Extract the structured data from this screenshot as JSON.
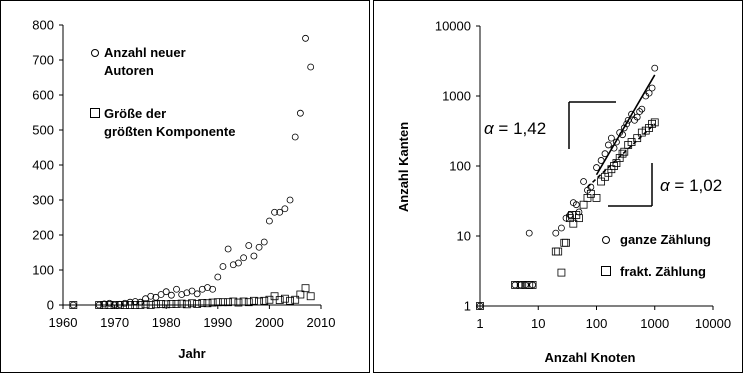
{
  "chart_data": [
    {
      "type": "scatter",
      "xlabel": "Jahr",
      "ylabel": "",
      "xlim": [
        1960,
        2010
      ],
      "ylim": [
        0,
        800
      ],
      "x_ticks": [
        "1960",
        "1970",
        "1980",
        "1990",
        "2000",
        "2010"
      ],
      "y_ticks": [
        "0",
        "100",
        "200",
        "300",
        "400",
        "500",
        "600",
        "700",
        "800"
      ],
      "grid": false,
      "legend_position": "top-left",
      "series": [
        {
          "name": "Anzahl neuer Autoren",
          "marker": "circle",
          "points": [
            [
              1962,
              0
            ],
            [
              1967,
              0
            ],
            [
              1968,
              3
            ],
            [
              1969,
              5
            ],
            [
              1970,
              0
            ],
            [
              1971,
              2
            ],
            [
              1972,
              5
            ],
            [
              1973,
              8
            ],
            [
              1974,
              10
            ],
            [
              1975,
              8
            ],
            [
              1976,
              18
            ],
            [
              1977,
              25
            ],
            [
              1978,
              22
            ],
            [
              1979,
              30
            ],
            [
              1980,
              38
            ],
            [
              1981,
              28
            ],
            [
              1982,
              45
            ],
            [
              1983,
              30
            ],
            [
              1984,
              35
            ],
            [
              1985,
              40
            ],
            [
              1986,
              32
            ],
            [
              1987,
              45
            ],
            [
              1988,
              50
            ],
            [
              1989,
              45
            ],
            [
              1990,
              80
            ],
            [
              1991,
              110
            ],
            [
              1992,
              160
            ],
            [
              1993,
              115
            ],
            [
              1994,
              120
            ],
            [
              1995,
              135
            ],
            [
              1996,
              170
            ],
            [
              1997,
              140
            ],
            [
              1998,
              165
            ],
            [
              1999,
              180
            ],
            [
              2000,
              240
            ],
            [
              2001,
              265
            ],
            [
              2002,
              265
            ],
            [
              2003,
              275
            ],
            [
              2004,
              300
            ],
            [
              2005,
              480
            ],
            [
              2006,
              548
            ],
            [
              2007,
              762
            ],
            [
              2008,
              680
            ]
          ]
        },
        {
          "name": "Größe der größten Komponente",
          "marker": "square",
          "points": [
            [
              1962,
              0
            ],
            [
              1967,
              0
            ],
            [
              1968,
              0
            ],
            [
              1969,
              0
            ],
            [
              1970,
              0
            ],
            [
              1971,
              0
            ],
            [
              1972,
              0
            ],
            [
              1973,
              0
            ],
            [
              1974,
              0
            ],
            [
              1975,
              0
            ],
            [
              1976,
              2
            ],
            [
              1977,
              0
            ],
            [
              1978,
              2
            ],
            [
              1979,
              3
            ],
            [
              1980,
              2
            ],
            [
              1981,
              3
            ],
            [
              1982,
              3
            ],
            [
              1983,
              4
            ],
            [
              1984,
              2
            ],
            [
              1985,
              5
            ],
            [
              1986,
              3
            ],
            [
              1987,
              6
            ],
            [
              1988,
              5
            ],
            [
              1989,
              7
            ],
            [
              1990,
              8
            ],
            [
              1991,
              8
            ],
            [
              1992,
              8
            ],
            [
              1993,
              10
            ],
            [
              1994,
              7
            ],
            [
              1995,
              10
            ],
            [
              1996,
              8
            ],
            [
              1997,
              12
            ],
            [
              1998,
              10
            ],
            [
              1999,
              12
            ],
            [
              2000,
              15
            ],
            [
              2001,
              25
            ],
            [
              2002,
              14
            ],
            [
              2003,
              18
            ],
            [
              2004,
              12
            ],
            [
              2005,
              15
            ],
            [
              2006,
              30
            ],
            [
              2007,
              48
            ],
            [
              2008,
              25
            ]
          ]
        }
      ]
    },
    {
      "type": "scatter",
      "xlabel": "Anzahl Knoten",
      "ylabel": "Anzahl Kanten",
      "xscale": "log",
      "yscale": "log",
      "xlim": [
        1,
        10000
      ],
      "ylim": [
        1,
        10000
      ],
      "x_ticks": [
        "1",
        "10",
        "100",
        "1000",
        "10000"
      ],
      "y_ticks": [
        "1",
        "10",
        "100",
        "1000",
        "10000"
      ],
      "grid": false,
      "legend_position": "bottom-right",
      "annotations": [
        {
          "greek": "α",
          "text": " = 1,42"
        },
        {
          "greek": "α",
          "text": " = 1,02"
        }
      ],
      "fit_lines": [
        {
          "series": "ganze Zählung",
          "from": [
            100,
            75
          ],
          "to": [
            1000,
            2000
          ],
          "style": "solid"
        },
        {
          "series": "frakt. Zählung",
          "from": [
            70,
            50
          ],
          "to": [
            1000,
            400
          ],
          "style": "dashed"
        }
      ],
      "series": [
        {
          "name": "ganze Zählung",
          "marker": "circle",
          "points": [
            [
              1,
              1
            ],
            [
              4,
              2
            ],
            [
              5,
              2
            ],
            [
              6,
              2
            ],
            [
              7,
              11
            ],
            [
              8,
              2
            ],
            [
              20,
              11
            ],
            [
              25,
              13
            ],
            [
              30,
              18
            ],
            [
              35,
              20
            ],
            [
              40,
              30
            ],
            [
              45,
              28
            ],
            [
              50,
              22
            ],
            [
              60,
              60
            ],
            [
              70,
              45
            ],
            [
              80,
              50
            ],
            [
              100,
              95
            ],
            [
              120,
              120
            ],
            [
              140,
              150
            ],
            [
              160,
              200
            ],
            [
              180,
              250
            ],
            [
              200,
              180
            ],
            [
              220,
              220
            ],
            [
              250,
              300
            ],
            [
              280,
              280
            ],
            [
              300,
              350
            ],
            [
              330,
              400
            ],
            [
              350,
              450
            ],
            [
              400,
              550
            ],
            [
              450,
              450
            ],
            [
              500,
              500
            ],
            [
              550,
              600
            ],
            [
              600,
              650
            ],
            [
              700,
              1000
            ],
            [
              800,
              1100
            ],
            [
              900,
              1300
            ],
            [
              1000,
              2500
            ]
          ]
        },
        {
          "name": "frakt. Zählung",
          "marker": "square",
          "points": [
            [
              1,
              1
            ],
            [
              4,
              2
            ],
            [
              5,
              2
            ],
            [
              6,
              2
            ],
            [
              7,
              2
            ],
            [
              8,
              2
            ],
            [
              20,
              6
            ],
            [
              22,
              6
            ],
            [
              25,
              3
            ],
            [
              28,
              8
            ],
            [
              30,
              8
            ],
            [
              35,
              18
            ],
            [
              38,
              20
            ],
            [
              40,
              15
            ],
            [
              45,
              20
            ],
            [
              50,
              18
            ],
            [
              60,
              28
            ],
            [
              70,
              35
            ],
            [
              80,
              40
            ],
            [
              100,
              35
            ],
            [
              120,
              60
            ],
            [
              140,
              70
            ],
            [
              160,
              80
            ],
            [
              180,
              90
            ],
            [
              200,
              100
            ],
            [
              220,
              110
            ],
            [
              250,
              130
            ],
            [
              280,
              150
            ],
            [
              300,
              160
            ],
            [
              350,
              200
            ],
            [
              400,
              220
            ],
            [
              500,
              250
            ],
            [
              600,
              300
            ],
            [
              700,
              320
            ],
            [
              800,
              350
            ],
            [
              900,
              400
            ],
            [
              1000,
              420
            ]
          ]
        }
      ]
    }
  ]
}
